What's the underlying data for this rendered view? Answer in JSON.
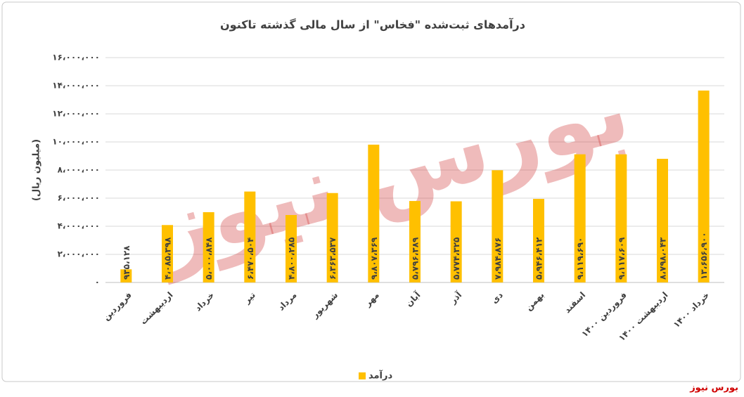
{
  "chart_data": {
    "type": "bar",
    "title": "درآمدهای ثبت‌شده \"فخاس\" از سال مالی گذشته تاکنون",
    "y_label": "(میلیون ریال)",
    "categories": [
      "فروردین",
      "اردیبهشت",
      "خرداد",
      "تیر",
      "مرداد",
      "شهریور",
      "مهر",
      "آبان",
      "آذر",
      "دی",
      "بهمن",
      "اسفند",
      "فروردین ۱۴۰۰",
      "اردیبهشت ۱۴۰۰",
      "خرداد ۱۴۰۰"
    ],
    "series": [
      {
        "name": "درآمد",
        "color": "#ffc000",
        "values": [
          935128,
          4085398,
          5000848,
          6470504,
          4800285,
          6363537,
          9807369,
          5796389,
          5774325,
          7984876,
          5946412,
          9119690,
          9117609,
          8798043,
          13656900
        ],
        "value_labels": [
          "۹۳۵،۱۲۸",
          "۴،۰۸۵،۳۹۸",
          "۵،۰۰۰،۸۴۸",
          "۶،۴۷۰،۵۰۴",
          "۴،۸۰۰،۲۸۵",
          "۶،۳۶۳،۵۳۷",
          "۹،۸۰۷،۳۶۹",
          "۵،۷۹۶،۳۸۹",
          "۵،۷۷۴،۳۲۵",
          "۷،۹۸۴،۸۷۶",
          "۵،۹۴۶،۴۱۲",
          "۹،۱۱۹،۶۹۰",
          "۹،۱۱۷،۶۰۹",
          "۸،۷۹۸،۰۴۳",
          "۱۳،۶۵۶،۹۰۰"
        ]
      }
    ],
    "ylim": [
      0,
      16000000
    ],
    "yticks": [
      {
        "value": 0,
        "label": "۰"
      },
      {
        "value": 2000000,
        "label": "۲،۰۰۰،۰۰۰"
      },
      {
        "value": 4000000,
        "label": "۴،۰۰۰،۰۰۰"
      },
      {
        "value": 6000000,
        "label": "۶،۰۰۰،۰۰۰"
      },
      {
        "value": 8000000,
        "label": "۸،۰۰۰،۰۰۰"
      },
      {
        "value": 10000000,
        "label": "۱۰،۰۰۰،۰۰۰"
      },
      {
        "value": 12000000,
        "label": "۱۲،۰۰۰،۰۰۰"
      },
      {
        "value": 14000000,
        "label": "۱۴،۰۰۰،۰۰۰"
      },
      {
        "value": 16000000,
        "label": "۱۶،۰۰۰،۰۰۰"
      }
    ],
    "grid": true,
    "legend": "bottom",
    "watermark": "بورس نیوز",
    "source": "بورس نیوز"
  }
}
